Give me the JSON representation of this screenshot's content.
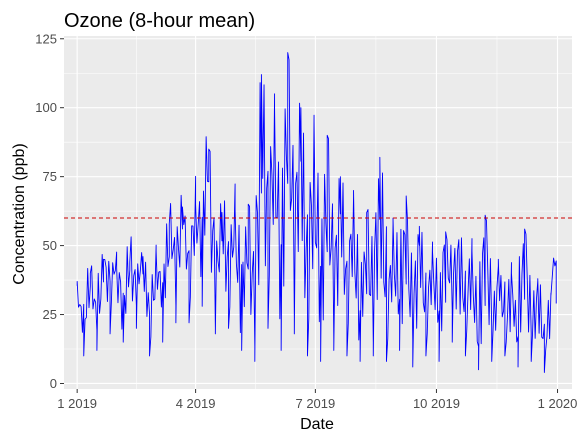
{
  "chart_data": {
    "type": "line",
    "title": "Ozone (8-hour mean)",
    "xlabel": "Date",
    "ylabel": "Concentration (ppb)",
    "x_ticks": [
      {
        "label": "1 2019",
        "value": "2019-01-01"
      },
      {
        "label": "4 2019",
        "value": "2019-04-01"
      },
      {
        "label": "7 2019",
        "value": "2019-07-01"
      },
      {
        "label": "10 2019",
        "value": "2019-10-01"
      },
      {
        "label": "1 2020",
        "value": "2020-01-01"
      }
    ],
    "y_ticks": [
      0,
      25,
      50,
      75,
      100,
      125
    ],
    "xlim": [
      "2018-12-22",
      "2020-01-12"
    ],
    "ylim": [
      -2,
      126
    ],
    "grid": true,
    "series": [
      {
        "color": "#0000ff",
        "x_start": "2019-01-01",
        "x_end": "2019-12-31",
        "points": [
          [
            "2019-01-01",
            37
          ],
          [
            "2019-01-06",
            10
          ],
          [
            "2019-01-11",
            40
          ],
          [
            "2019-01-16",
            12
          ],
          [
            "2019-01-21",
            45
          ],
          [
            "2019-01-26",
            18
          ],
          [
            "2019-01-31",
            42
          ],
          [
            "2019-02-05",
            15
          ],
          [
            "2019-02-10",
            44
          ],
          [
            "2019-02-15",
            20
          ],
          [
            "2019-02-20",
            46
          ],
          [
            "2019-02-25",
            10
          ],
          [
            "2019-03-02",
            48
          ],
          [
            "2019-03-07",
            15
          ],
          [
            "2019-03-12",
            58
          ],
          [
            "2019-03-17",
            22
          ],
          [
            "2019-03-22",
            64
          ],
          [
            "2019-03-27",
            22
          ],
          [
            "2019-04-01",
            65
          ],
          [
            "2019-04-06",
            28
          ],
          [
            "2019-04-11",
            85
          ],
          [
            "2019-04-16",
            18
          ],
          [
            "2019-04-21",
            62
          ],
          [
            "2019-04-26",
            20
          ],
          [
            "2019-05-01",
            63
          ],
          [
            "2019-05-06",
            12
          ],
          [
            "2019-05-11",
            65
          ],
          [
            "2019-05-16",
            8
          ],
          [
            "2019-05-21",
            112
          ],
          [
            "2019-05-26",
            20
          ],
          [
            "2019-05-31",
            100
          ],
          [
            "2019-06-05",
            12
          ],
          [
            "2019-06-10",
            120
          ],
          [
            "2019-06-15",
            18
          ],
          [
            "2019-06-20",
            100
          ],
          [
            "2019-06-25",
            10
          ],
          [
            "2019-06-30",
            95
          ],
          [
            "2019-07-05",
            8
          ],
          [
            "2019-07-10",
            90
          ],
          [
            "2019-07-15",
            12
          ],
          [
            "2019-07-20",
            75
          ],
          [
            "2019-07-25",
            10
          ],
          [
            "2019-07-30",
            70
          ],
          [
            "2019-08-04",
            8
          ],
          [
            "2019-08-09",
            62
          ],
          [
            "2019-08-14",
            10
          ],
          [
            "2019-08-19",
            82
          ],
          [
            "2019-08-24",
            8
          ],
          [
            "2019-08-29",
            60
          ],
          [
            "2019-09-03",
            12
          ],
          [
            "2019-09-08",
            68
          ],
          [
            "2019-09-13",
            6
          ],
          [
            "2019-09-18",
            57
          ],
          [
            "2019-09-23",
            10
          ],
          [
            "2019-09-28",
            48
          ],
          [
            "2019-10-03",
            8
          ],
          [
            "2019-10-08",
            55
          ],
          [
            "2019-10-13",
            15
          ],
          [
            "2019-10-18",
            52
          ],
          [
            "2019-10-23",
            10
          ],
          [
            "2019-10-28",
            48
          ],
          [
            "2019-11-02",
            5
          ],
          [
            "2019-11-07",
            61
          ],
          [
            "2019-11-12",
            8
          ],
          [
            "2019-11-17",
            45
          ],
          [
            "2019-11-22",
            10
          ],
          [
            "2019-11-27",
            40
          ],
          [
            "2019-12-02",
            6
          ],
          [
            "2019-12-07",
            56
          ],
          [
            "2019-12-12",
            8
          ],
          [
            "2019-12-17",
            38
          ],
          [
            "2019-12-22",
            4
          ],
          [
            "2019-12-27",
            32
          ],
          [
            "2019-12-31",
            29
          ]
        ]
      }
    ],
    "reference_line": {
      "y": 60,
      "color": "#cc0000",
      "style": "dashed"
    }
  }
}
